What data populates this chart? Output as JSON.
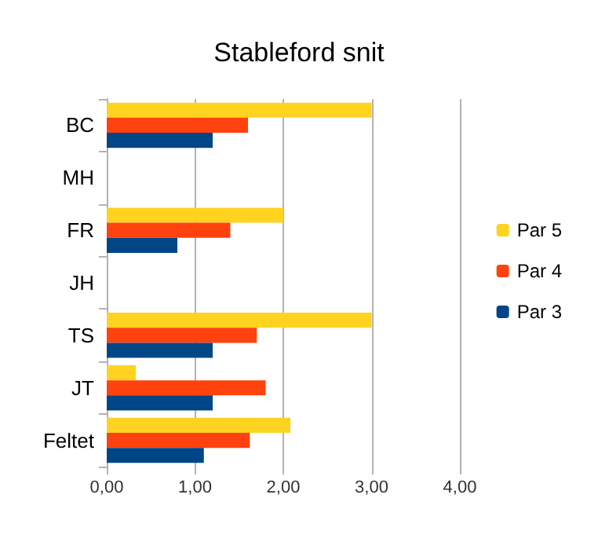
{
  "chart_data": {
    "type": "bar",
    "orientation": "horizontal",
    "title": "Stableford snit",
    "categories": [
      "BC",
      "MH",
      "FR",
      "JH",
      "TS",
      "JT",
      "Feltet"
    ],
    "series": [
      {
        "name": "Par 5",
        "color": "#ffd320",
        "values": [
          3.0,
          null,
          2.0,
          null,
          3.0,
          0.33,
          2.08
        ]
      },
      {
        "name": "Par 4",
        "color": "#ff420e",
        "values": [
          1.6,
          null,
          1.4,
          null,
          1.7,
          1.8,
          1.62
        ]
      },
      {
        "name": "Par 3",
        "color": "#004586",
        "values": [
          1.2,
          null,
          0.8,
          null,
          1.2,
          1.2,
          1.1
        ]
      }
    ],
    "xlim": [
      0,
      4
    ],
    "xticks": [
      {
        "value": 0,
        "label": "0,00"
      },
      {
        "value": 1,
        "label": "1,00"
      },
      {
        "value": 2,
        "label": "2,00"
      },
      {
        "value": 3,
        "label": "3,00"
      },
      {
        "value": 4,
        "label": "4,00"
      }
    ],
    "grid": "x",
    "legend": "right"
  }
}
